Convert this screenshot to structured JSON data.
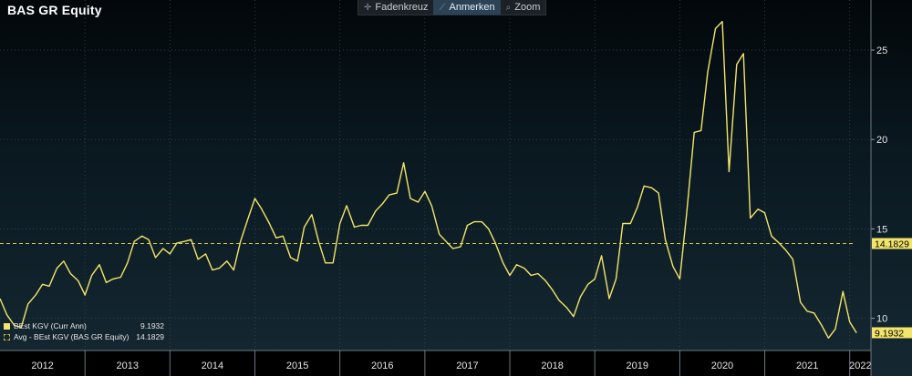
{
  "header": {
    "title": "BAS GR Equity",
    "toolbar": [
      {
        "label": "Fadenkreuz",
        "icon": "crosshair-icon",
        "active": false
      },
      {
        "label": "Anmerken",
        "icon": "pencil-icon",
        "active": true
      },
      {
        "label": "Zoom",
        "icon": "magnifier-icon",
        "active": false
      }
    ]
  },
  "legend": {
    "series_label": "BEst KGV (Curr Ann)",
    "series_value": "9.1932",
    "avg_label": "Avg - BEst KGV (BAS GR Equity)",
    "avg_value": "14.1829"
  },
  "colors": {
    "line": "#f2e56b",
    "avg_line": "#d8c94a",
    "badge": "#f2e56b",
    "grid": "#3a4a54",
    "axis_text": "#e6e6e6"
  },
  "chart_data": {
    "type": "line",
    "x_unit": "year (decimal)",
    "xlim": [
      2012.0,
      2022.25
    ],
    "ylim": [
      8.2,
      27.8
    ],
    "yticks": [
      10,
      15,
      20,
      25
    ],
    "ytick_labels": [
      "10",
      "15",
      "20",
      "25"
    ],
    "xtick_years": [
      2012,
      2013,
      2014,
      2015,
      2016,
      2017,
      2018,
      2019,
      2020,
      2021,
      2022
    ],
    "xtick_labels": [
      "2012",
      "2013",
      "2014",
      "2015",
      "2016",
      "2017",
      "2018",
      "2019",
      "2020",
      "2021",
      "2022"
    ],
    "grid": true,
    "legend_position": "bottom-left",
    "average": 14.1829,
    "average_label": "14.1829",
    "last_value": 9.1932,
    "last_label": "9.1932",
    "series": [
      {
        "name": "BEst KGV (Curr Ann)",
        "x": [
          2012.0,
          2012.08,
          2012.17,
          2012.25,
          2012.33,
          2012.42,
          2012.5,
          2012.58,
          2012.67,
          2012.75,
          2012.83,
          2012.92,
          2013.0,
          2013.08,
          2013.17,
          2013.25,
          2013.33,
          2013.42,
          2013.5,
          2013.58,
          2013.67,
          2013.75,
          2013.83,
          2013.92,
          2014.0,
          2014.08,
          2014.17,
          2014.25,
          2014.33,
          2014.42,
          2014.5,
          2014.58,
          2014.67,
          2014.75,
          2014.83,
          2014.92,
          2015.0,
          2015.08,
          2015.17,
          2015.25,
          2015.33,
          2015.42,
          2015.5,
          2015.58,
          2015.67,
          2015.75,
          2015.83,
          2015.92,
          2016.0,
          2016.08,
          2016.17,
          2016.25,
          2016.33,
          2016.42,
          2016.5,
          2016.58,
          2016.67,
          2016.75,
          2016.83,
          2016.92,
          2017.0,
          2017.08,
          2017.17,
          2017.25,
          2017.33,
          2017.42,
          2017.5,
          2017.58,
          2017.67,
          2017.75,
          2017.83,
          2017.92,
          2018.0,
          2018.08,
          2018.17,
          2018.25,
          2018.33,
          2018.42,
          2018.5,
          2018.58,
          2018.67,
          2018.75,
          2018.83,
          2018.92,
          2019.0,
          2019.08,
          2019.17,
          2019.25,
          2019.33,
          2019.42,
          2019.5,
          2019.58,
          2019.67,
          2019.75,
          2019.83,
          2019.92,
          2020.0,
          2020.08,
          2020.17,
          2020.25,
          2020.33,
          2020.42,
          2020.5,
          2020.58,
          2020.67,
          2020.75,
          2020.83,
          2020.92,
          2021.0,
          2021.08,
          2021.17,
          2021.25,
          2021.33,
          2021.42,
          2021.5,
          2021.58,
          2021.67,
          2021.75,
          2021.83,
          2021.92,
          2022.0,
          2022.08
        ],
        "y": [
          11.1,
          10.2,
          9.6,
          9.5,
          10.8,
          11.3,
          11.9,
          11.8,
          12.8,
          13.2,
          12.5,
          12.1,
          11.3,
          12.4,
          13.0,
          12.0,
          12.2,
          12.3,
          13.1,
          14.3,
          14.6,
          14.4,
          13.4,
          13.9,
          13.6,
          14.2,
          14.3,
          14.4,
          13.3,
          13.6,
          12.7,
          12.8,
          13.2,
          12.7,
          14.3,
          15.6,
          16.7,
          16.1,
          15.3,
          14.5,
          14.6,
          13.4,
          13.2,
          15.1,
          15.8,
          14.3,
          13.1,
          13.1,
          15.3,
          16.3,
          15.1,
          15.2,
          15.2,
          16.0,
          16.4,
          16.9,
          17.0,
          18.7,
          16.7,
          16.5,
          17.1,
          16.3,
          14.7,
          14.3,
          13.9,
          14.0,
          15.2,
          15.4,
          15.4,
          15.0,
          14.2,
          13.1,
          12.4,
          13.0,
          12.8,
          12.4,
          12.5,
          12.1,
          11.6,
          11.0,
          10.6,
          10.1,
          11.2,
          11.9,
          12.2,
          13.5,
          11.1,
          12.2,
          15.3,
          15.3,
          16.2,
          17.4,
          17.3,
          17.0,
          14.4,
          12.9,
          12.2,
          15.8,
          20.4,
          20.5,
          23.8,
          26.2,
          26.6,
          18.2,
          24.2,
          24.8,
          15.6,
          16.1,
          15.9,
          14.6,
          14.2,
          13.8,
          13.3,
          10.9,
          10.4,
          10.3,
          9.6,
          8.9,
          9.4,
          11.5,
          9.8,
          9.19
        ]
      }
    ]
  }
}
